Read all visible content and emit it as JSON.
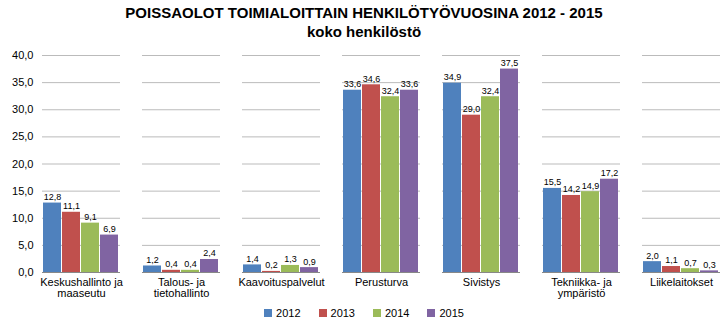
{
  "chart_data": {
    "type": "bar",
    "title": "POISSAOLOT TOIMIALOITTAIN HENKILÖTYÖVUOSINA 2012 - 2015",
    "subtitle": "koko henkilöstö",
    "categories": [
      "Keskushallinto ja\nmaaseutu",
      "Talous- ja\ntietohallinto",
      "Kaavoituspalvelut",
      "Perusturva",
      "Sivistys",
      "Tekniikka- ja\nympäristö",
      "Liikelaitokset"
    ],
    "series": [
      {
        "name": "2012",
        "color": "#4f81bd",
        "values": [
          12.8,
          1.2,
          1.4,
          33.6,
          34.9,
          15.5,
          2.0
        ],
        "value_labels": [
          "12,8",
          "1,2",
          "1,4",
          "33,6",
          "34,9",
          "15,5",
          "2,0"
        ]
      },
      {
        "name": "2013",
        "color": "#c0504d",
        "values": [
          11.1,
          0.4,
          0.2,
          34.6,
          29.0,
          14.2,
          1.1
        ],
        "value_labels": [
          "11,1",
          "0,4",
          "0,2",
          "34,6",
          "29,0",
          "14,2",
          "1,1"
        ]
      },
      {
        "name": "2014",
        "color": "#9bbb59",
        "values": [
          9.1,
          0.4,
          1.3,
          32.4,
          32.4,
          14.9,
          0.7
        ],
        "value_labels": [
          "9,1",
          "0,4",
          "1,3",
          "32,4",
          "32,4",
          "14,9",
          "0,7"
        ]
      },
      {
        "name": "2015",
        "color": "#8064a2",
        "values": [
          6.9,
          2.4,
          0.9,
          33.6,
          37.5,
          17.2,
          0.3
        ],
        "value_labels": [
          "6,9",
          "2,4",
          "0,9",
          "33,6",
          "37,5",
          "17,2",
          "0,3"
        ]
      }
    ],
    "ylim": [
      0,
      40
    ],
    "yticks": [
      {
        "value": 0,
        "label": "0,0"
      },
      {
        "value": 5,
        "label": "5,0"
      },
      {
        "value": 10,
        "label": "10,0"
      },
      {
        "value": 15,
        "label": "15,0"
      },
      {
        "value": 20,
        "label": "20,0"
      },
      {
        "value": 25,
        "label": "25,0"
      },
      {
        "value": 30,
        "label": "30,0"
      },
      {
        "value": 35,
        "label": "35,0"
      },
      {
        "value": 40,
        "label": "40,0"
      }
    ],
    "grid": true,
    "legend": "bottom",
    "data_labels": true
  }
}
